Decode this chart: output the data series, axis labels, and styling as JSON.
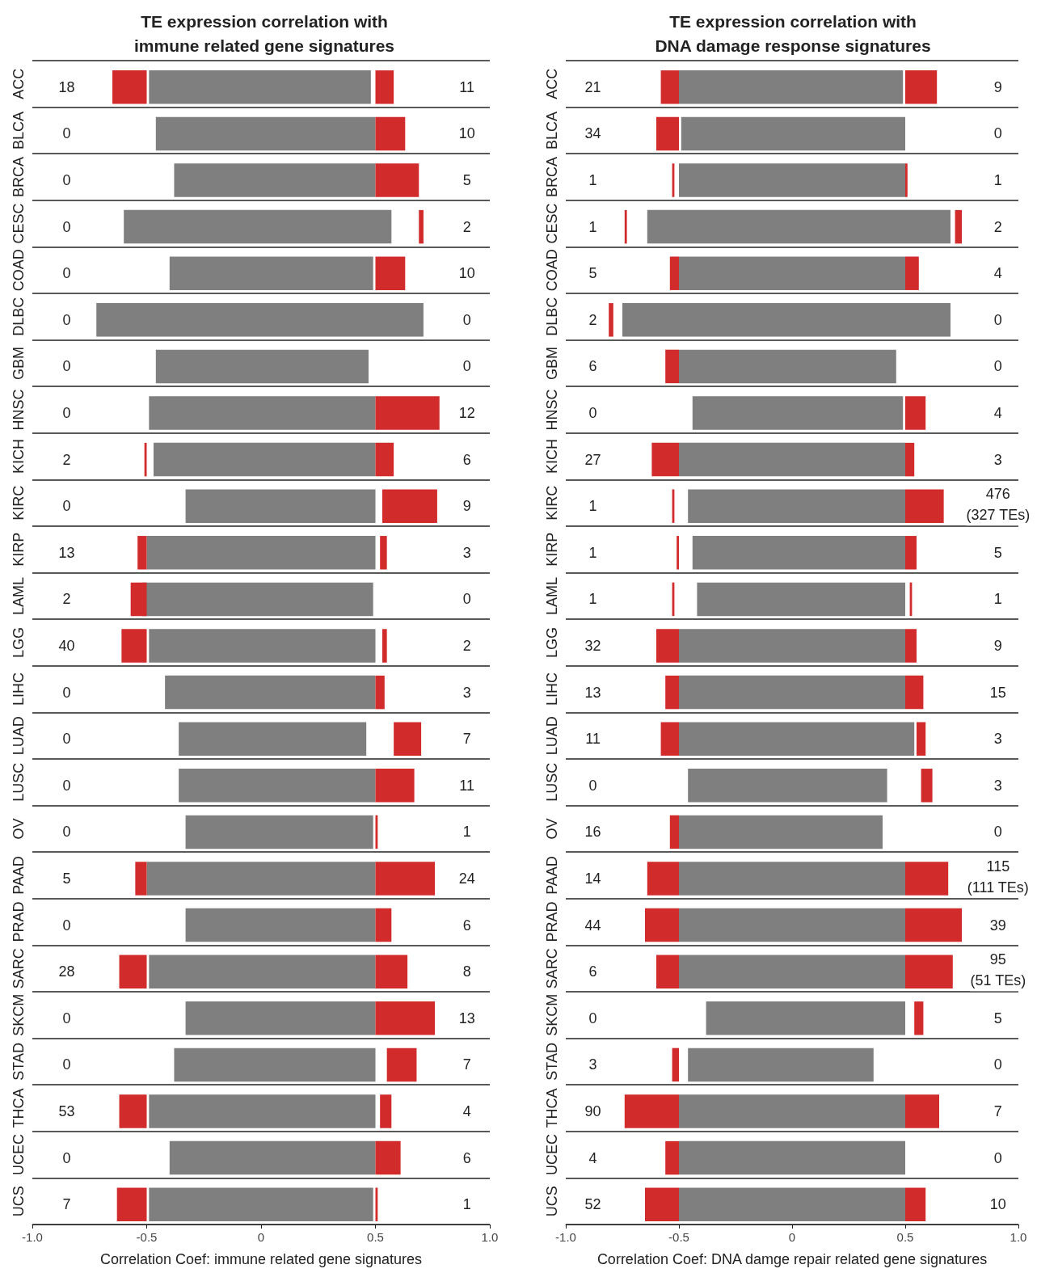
{
  "chart_data": [
    {
      "type": "bar",
      "orientation": "horizontal",
      "title": "TE expression correlation with\nimmune related gene signatures",
      "xlabel": "Correlation Coef: immune related gene signatures",
      "categories": [
        "ACC",
        "BLCA",
        "BRCA",
        "CESC",
        "COAD",
        "DLBC",
        "GBM",
        "HNSC",
        "KICH",
        "KIRC",
        "KIRP",
        "LAML",
        "LGG",
        "LIHC",
        "LUAD",
        "LUSC",
        "OV",
        "PAAD",
        "PRAD",
        "SARC",
        "SKCM",
        "STAD",
        "THCA",
        "UCEC",
        "UCS"
      ],
      "xlim": [
        -1,
        1
      ],
      "xticks": [
        {
          "value": -1,
          "label": "-1.0"
        },
        {
          "value": -0.5,
          "label": "-0.5"
        },
        0,
        {
          "value": 0.5,
          "label": "0.5"
        },
        {
          "value": 1,
          "label": "1.0"
        }
      ],
      "grid": "y",
      "series": [
        {
          "color": "#7f7f7f",
          "base": [
            -0.49,
            -0.46,
            -0.38,
            -0.6,
            -0.4,
            -0.72,
            -0.46,
            -0.49,
            -0.47,
            -0.33,
            -0.5,
            -0.52,
            -0.49,
            -0.42,
            -0.36,
            -0.36,
            -0.33,
            -0.5,
            -0.33,
            -0.49,
            -0.33,
            -0.38,
            -0.49,
            -0.4,
            -0.49
          ],
          "values": [
            0.97,
            0.96,
            0.88,
            1.17,
            0.89,
            1.43,
            0.93,
            0.99,
            0.97,
            0.83,
            1.0,
            1.01,
            0.99,
            0.92,
            0.82,
            0.86,
            0.82,
            1.0,
            0.83,
            0.99,
            0.83,
            0.88,
            0.99,
            0.9,
            0.98
          ]
        },
        {
          "color": "#d22b2b",
          "base": [
            -0.65,
            null,
            null,
            null,
            null,
            null,
            null,
            null,
            -0.51,
            null,
            -0.54,
            -0.57,
            -0.61,
            null,
            null,
            null,
            null,
            -0.55,
            null,
            -0.62,
            null,
            null,
            -0.62,
            null,
            -0.63
          ],
          "values": [
            0.15,
            null,
            null,
            null,
            null,
            null,
            null,
            null,
            0.01,
            null,
            0.04,
            0.07,
            0.11,
            null,
            null,
            null,
            null,
            0.05,
            null,
            0.12,
            null,
            null,
            0.12,
            null,
            0.13
          ]
        },
        {
          "color": "#d22b2b",
          "base": [
            0.5,
            0.5,
            0.5,
            0.69,
            0.5,
            null,
            null,
            0.5,
            0.5,
            0.53,
            0.52,
            null,
            0.53,
            0.5,
            0.58,
            0.5,
            0.5,
            0.5,
            0.5,
            0.5,
            0.5,
            0.55,
            0.52,
            0.5,
            0.5
          ],
          "values": [
            0.08,
            0.13,
            0.19,
            0.02,
            0.13,
            null,
            null,
            0.28,
            0.08,
            0.24,
            0.03,
            null,
            0.02,
            0.04,
            0.12,
            0.17,
            0.01,
            0.26,
            0.07,
            0.14,
            0.26,
            0.13,
            0.05,
            0.11,
            0.01
          ]
        }
      ],
      "annotations": [
        "18",
        "11",
        "0",
        "10",
        "0",
        "5",
        "0",
        "2",
        "0",
        "10",
        "0",
        "0",
        "0",
        "0",
        "0",
        "12",
        "2",
        "6",
        "0",
        "9",
        "13",
        "3",
        "2",
        "0",
        "40",
        "2",
        "0",
        "3",
        "0",
        "7",
        "0",
        "11",
        "0",
        "1",
        "5",
        "24",
        "0",
        "6",
        "28",
        "8",
        "0",
        "13",
        "0",
        "7",
        "53",
        "4",
        "0",
        "6",
        "7",
        "1"
      ]
    },
    {
      "type": "bar",
      "orientation": "horizontal",
      "title": "TE expression correlation with\nDNA damage response signatures",
      "xlabel": "Correlation Coef: DNA damge repair related gene signatures",
      "categories": [
        "ACC",
        "BLCA",
        "BRCA",
        "CESC",
        "COAD",
        "DLBC",
        "GBM",
        "HNSC",
        "KICH",
        "KIRC",
        "KIRP",
        "LAML",
        "LGG",
        "LIHC",
        "LUAD",
        "LUSC",
        "OV",
        "PAAD",
        "PRAD",
        "SARC",
        "SKCM",
        "STAD",
        "THCA",
        "UCEC",
        "UCS"
      ],
      "xlim": [
        -1,
        1
      ],
      "xticks": [
        {
          "value": -1,
          "label": "-1.0"
        },
        {
          "value": -0.5,
          "label": "-0.5"
        },
        0,
        {
          "value": 0.5,
          "label": "0.5"
        },
        {
          "value": 1,
          "label": "1.0"
        }
      ],
      "grid": "y",
      "series": [
        {
          "color": "#7f7f7f",
          "base": [
            -0.5,
            -0.49,
            -0.5,
            -0.64,
            -0.5,
            -0.75,
            -0.5,
            -0.44,
            -0.5,
            -0.46,
            -0.44,
            -0.42,
            -0.5,
            -0.5,
            -0.5,
            -0.46,
            -0.5,
            -0.5,
            -0.5,
            -0.5,
            -0.38,
            -0.46,
            -0.5,
            -0.5,
            -0.5
          ],
          "values": [
            0.99,
            0.99,
            1.0,
            1.34,
            1.0,
            1.45,
            0.96,
            0.93,
            1.0,
            0.96,
            0.94,
            0.92,
            1.0,
            1.0,
            1.04,
            0.88,
            0.9,
            1.0,
            1.0,
            1.0,
            0.88,
            0.82,
            1.0,
            1.0,
            1.0
          ]
        },
        {
          "color": "#d22b2b",
          "base": [
            -0.58,
            -0.6,
            -0.53,
            -0.74,
            -0.54,
            -0.81,
            -0.56,
            null,
            -0.62,
            -0.53,
            -0.51,
            -0.53,
            -0.6,
            -0.56,
            -0.58,
            null,
            -0.54,
            -0.64,
            -0.65,
            -0.6,
            null,
            -0.53,
            -0.74,
            -0.56,
            -0.65
          ],
          "values": [
            0.08,
            0.1,
            0.01,
            0.01,
            0.04,
            0.02,
            0.06,
            null,
            0.12,
            0.01,
            0.01,
            0.01,
            0.1,
            0.06,
            0.08,
            null,
            0.04,
            0.14,
            0.15,
            0.1,
            null,
            0.03,
            0.24,
            0.06,
            0.15
          ]
        },
        {
          "color": "#d22b2b",
          "base": [
            0.5,
            null,
            0.5,
            0.72,
            0.5,
            null,
            null,
            0.5,
            0.5,
            0.5,
            0.5,
            0.52,
            0.5,
            0.5,
            0.55,
            0.57,
            null,
            0.5,
            0.5,
            0.5,
            0.54,
            null,
            0.5,
            null,
            0.5
          ],
          "values": [
            0.14,
            null,
            0.01,
            0.03,
            0.06,
            null,
            null,
            0.09,
            0.04,
            0.17,
            0.05,
            0.01,
            0.05,
            0.08,
            0.04,
            0.05,
            null,
            0.19,
            0.25,
            0.21,
            0.04,
            null,
            0.15,
            null,
            0.09
          ]
        }
      ],
      "annotations": [
        "21",
        "9",
        "34",
        "0",
        "1",
        "1",
        "1",
        "2",
        "5",
        "4",
        "2",
        "0",
        "6",
        "0",
        "0",
        "4",
        "27",
        "3",
        "1",
        "476\n(327 TEs)",
        "1",
        "5",
        "1",
        "1",
        "32",
        "9",
        "13",
        "15",
        "11",
        "3",
        "0",
        "3",
        "16",
        "0",
        "14",
        "115\n(111 TEs)",
        "44",
        "39",
        "6",
        "95\n(51 TEs)",
        "0",
        "5",
        "3",
        "0",
        "90",
        "7",
        "4",
        "0",
        "52",
        "10"
      ]
    }
  ]
}
